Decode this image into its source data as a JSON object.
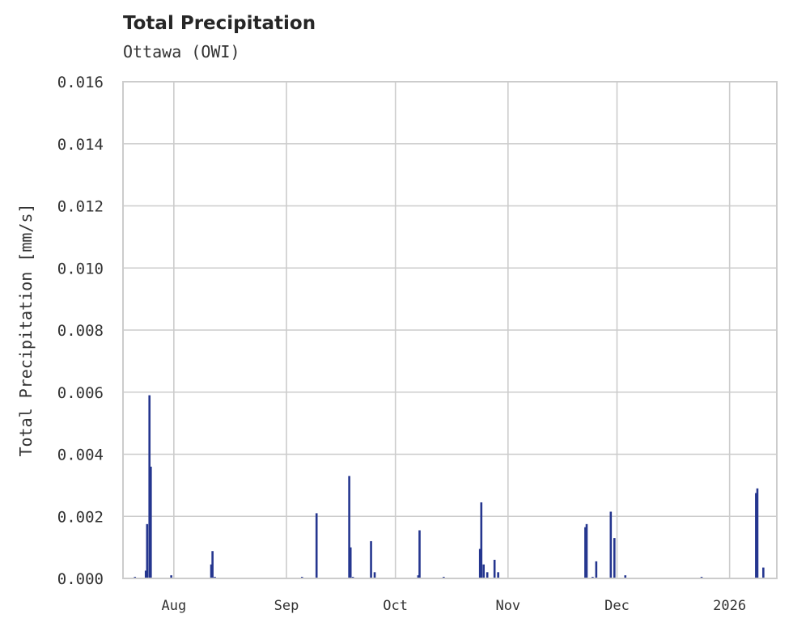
{
  "chart_data": {
    "type": "bar",
    "title": "Total Precipitation",
    "subtitle": "Ottawa (OWI)",
    "xlabel": "",
    "ylabel": "Total Precipitation [mm/s]",
    "ylim": [
      0,
      0.016
    ],
    "y_ticks": [
      "0.000",
      "0.002",
      "0.004",
      "0.006",
      "0.008",
      "0.010",
      "0.012",
      "0.014",
      "0.016"
    ],
    "x_ticks": [
      "Aug",
      "Sep",
      "Oct",
      "Nov",
      "Dec",
      "2026"
    ],
    "x_range": [
      "2025-07-18",
      "2026-01-14"
    ],
    "grid": true,
    "legend": null,
    "color": "#25368f",
    "series": [
      {
        "name": "Total Precipitation",
        "points": [
          {
            "date": "2025-07-21",
            "value": 5e-05
          },
          {
            "date": "2025-07-24",
            "value": 0.00025
          },
          {
            "date": "2025-07-24",
            "value": 0.00175
          },
          {
            "date": "2025-07-25",
            "value": 0.0059
          },
          {
            "date": "2025-07-25",
            "value": 0.0036
          },
          {
            "date": "2025-07-31",
            "value": 0.0001
          },
          {
            "date": "2025-08-11",
            "value": 0.00045
          },
          {
            "date": "2025-08-11",
            "value": 0.00088
          },
          {
            "date": "2025-08-12",
            "value": 5e-05
          },
          {
            "date": "2025-09-05",
            "value": 5e-05
          },
          {
            "date": "2025-09-09",
            "value": 0.0021
          },
          {
            "date": "2025-09-18",
            "value": 0.0033
          },
          {
            "date": "2025-09-18",
            "value": 0.001
          },
          {
            "date": "2025-09-19",
            "value": 5e-05
          },
          {
            "date": "2025-09-24",
            "value": 0.0012
          },
          {
            "date": "2025-09-25",
            "value": 0.0002
          },
          {
            "date": "2025-10-07",
            "value": 0.0001
          },
          {
            "date": "2025-10-07",
            "value": 0.00155
          },
          {
            "date": "2025-10-14",
            "value": 5e-05
          },
          {
            "date": "2025-10-24",
            "value": 0.00095
          },
          {
            "date": "2025-10-24",
            "value": 0.00245
          },
          {
            "date": "2025-10-25",
            "value": 0.00045
          },
          {
            "date": "2025-10-26",
            "value": 0.0002
          },
          {
            "date": "2025-10-28",
            "value": 0.0006
          },
          {
            "date": "2025-10-29",
            "value": 0.0002
          },
          {
            "date": "2025-11-22",
            "value": 0.00165
          },
          {
            "date": "2025-11-22",
            "value": 0.00175
          },
          {
            "date": "2025-11-24",
            "value": 5e-05
          },
          {
            "date": "2025-11-25",
            "value": 0.00055
          },
          {
            "date": "2025-11-29",
            "value": 0.00215
          },
          {
            "date": "2025-11-30",
            "value": 0.0013
          },
          {
            "date": "2025-12-03",
            "value": 0.0001
          },
          {
            "date": "2025-12-24",
            "value": 5e-05
          },
          {
            "date": "2026-01-08",
            "value": 0.00275
          },
          {
            "date": "2026-01-08",
            "value": 0.0029
          },
          {
            "date": "2026-01-10",
            "value": 0.00035
          }
        ]
      }
    ]
  },
  "header": {
    "title": "Total Precipitation",
    "subtitle": "Ottawa (OWI)"
  },
  "axes": {
    "ylabel": "Total Precipitation [mm/s]"
  }
}
